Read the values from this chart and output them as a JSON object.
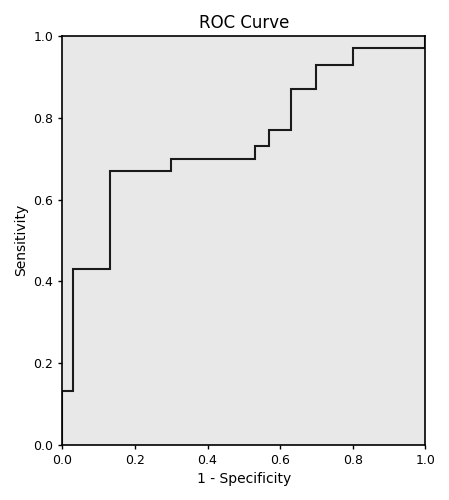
{
  "title": "ROC Curve",
  "xlabel": "1 - Specificity",
  "ylabel": "Sensitivity",
  "xlim": [
    0.0,
    1.0
  ],
  "ylim": [
    0.0,
    1.0
  ],
  "xticks": [
    0.0,
    0.2,
    0.4,
    0.6,
    0.8,
    1.0
  ],
  "yticks": [
    0.0,
    0.2,
    0.4,
    0.6,
    0.8,
    1.0
  ],
  "line_color": "#1a1a1a",
  "line_width": 1.5,
  "background_color": "#e8e8e8",
  "roc_x": [
    0.0,
    0.0,
    0.03,
    0.03,
    0.13,
    0.13,
    0.3,
    0.3,
    0.53,
    0.53,
    0.57,
    0.57,
    0.63,
    0.63,
    0.7,
    0.7,
    0.8,
    0.8,
    1.0,
    1.0
  ],
  "roc_y": [
    0.0,
    0.13,
    0.13,
    0.43,
    0.43,
    0.67,
    0.67,
    0.7,
    0.7,
    0.73,
    0.73,
    0.77,
    0.77,
    0.87,
    0.87,
    0.93,
    0.93,
    0.97,
    0.97,
    1.0
  ],
  "title_fontsize": 12,
  "label_fontsize": 10,
  "tick_fontsize": 9,
  "figure_bg": "#ffffff"
}
